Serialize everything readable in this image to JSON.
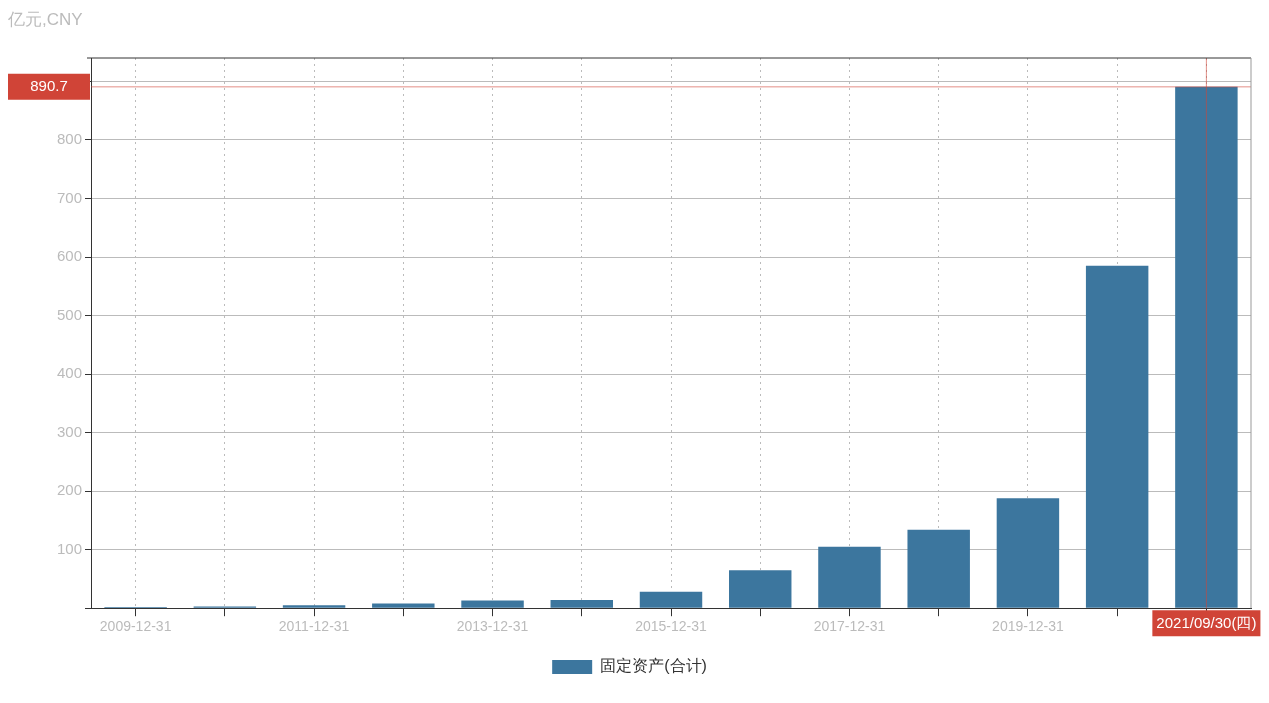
{
  "chart_data": {
    "type": "bar",
    "ylabel": "亿元,CNY",
    "categories": [
      "2009-12-31",
      null,
      "2011-12-31",
      null,
      "2013-12-31",
      null,
      "2015-12-31",
      null,
      "2017-12-31",
      null,
      "2019-12-31",
      null,
      "2021/09/30(四)"
    ],
    "series": [
      {
        "name": "固定资产(合计)",
        "color": "#3c769e",
        "values": [
          2,
          3,
          5,
          8,
          13,
          14,
          28,
          65,
          105,
          134,
          188,
          585,
          890.7
        ]
      }
    ],
    "ylim": [
      0,
      940
    ],
    "yticks": [
      {
        "value": 0,
        "label": null
      },
      100,
      200,
      300,
      400,
      500,
      600,
      700,
      800,
      {
        "value": 900,
        "label": null
      }
    ],
    "ref_lines": [
      {
        "axis": "y",
        "value": 890.7,
        "label": "890.7",
        "color": "#d04437"
      },
      {
        "axis": "x",
        "value": "2021/09/30(四)",
        "color": "#d04437"
      }
    ],
    "grid": true,
    "legend": "bottom"
  }
}
